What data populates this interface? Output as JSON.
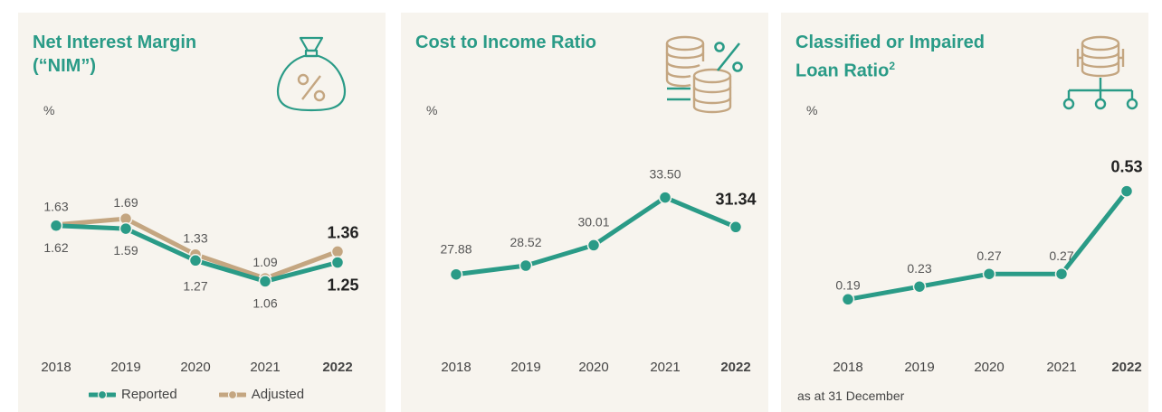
{
  "colors": {
    "teal": "#2a9b87",
    "tan": "#c4a681",
    "panel": "#f7f4ee"
  },
  "panels": [
    {
      "title_line1": "Net Interest Margin",
      "title_line2": "(“NIM”)",
      "unit": "%",
      "icon": "money-bag-percent-icon"
    },
    {
      "title_line1": "Cost to Income Ratio",
      "unit": "%",
      "icon": "coins-percent-icon"
    },
    {
      "title_line1": "Classified or Impaired",
      "title_line2": "Loan Ratio",
      "title_sup": "2",
      "unit": "%",
      "icon": "coins-network-icon",
      "note": "as at 31 December"
    }
  ],
  "legend": {
    "reported": "Reported",
    "adjusted": "Adjusted"
  },
  "chart_data": [
    {
      "type": "line",
      "categories": [
        "2018",
        "2019",
        "2020",
        "2021",
        "2022"
      ],
      "series": [
        {
          "name": "Reported",
          "values": [
            1.62,
            1.59,
            1.27,
            1.06,
            1.25
          ],
          "labels": [
            "1.62",
            "1.59",
            "1.27",
            "1.06",
            "1.25"
          ]
        },
        {
          "name": "Adjusted",
          "values": [
            1.63,
            1.69,
            1.33,
            1.09,
            1.36
          ],
          "labels": [
            "1.63",
            "1.69",
            "1.33",
            "1.09",
            "1.36"
          ]
        }
      ],
      "ylabel": "%",
      "bold_last": true
    },
    {
      "type": "line",
      "categories": [
        "2018",
        "2019",
        "2020",
        "2021",
        "2022"
      ],
      "series": [
        {
          "values": [
            27.88,
            28.52,
            30.01,
            33.5,
            31.34
          ],
          "labels": [
            "27.88",
            "28.52",
            "30.01",
            "33.50",
            "31.34"
          ]
        }
      ],
      "ylabel": "%",
      "bold_last": true
    },
    {
      "type": "line",
      "categories": [
        "2018",
        "2019",
        "2020",
        "2021",
        "2022"
      ],
      "series": [
        {
          "values": [
            0.19,
            0.23,
            0.27,
            0.27,
            0.53
          ],
          "labels": [
            "0.19",
            "0.23",
            "0.27",
            "0.27",
            "0.53"
          ]
        }
      ],
      "ylabel": "%",
      "bold_last": true
    }
  ]
}
